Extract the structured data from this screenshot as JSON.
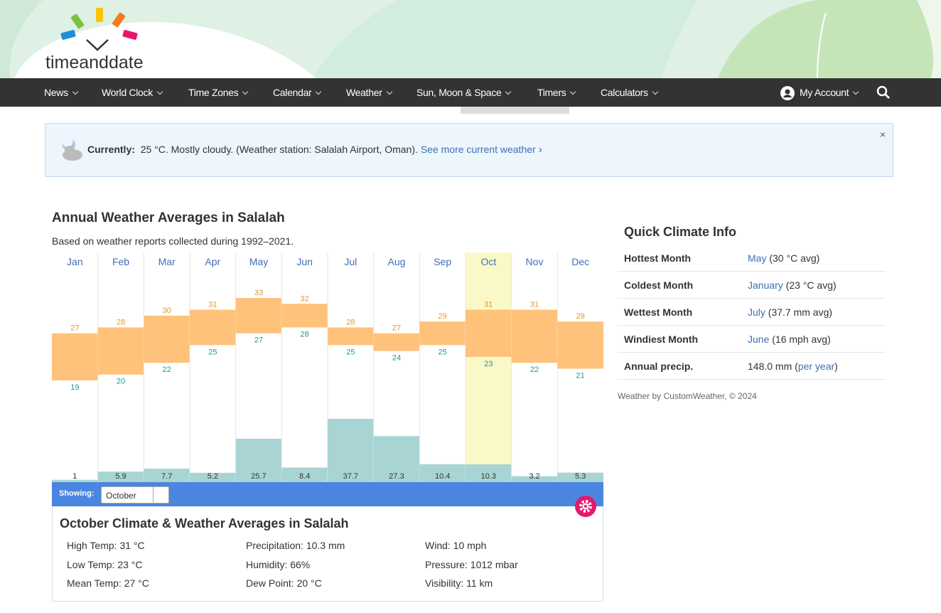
{
  "header": {
    "logo": "timeanddate"
  },
  "nav": {
    "items": [
      "News",
      "World Clock",
      "Time Zones",
      "Calendar",
      "Weather",
      "Sun, Moon & Space",
      "Timers",
      "Calculators"
    ],
    "account": "My Account"
  },
  "current": {
    "label": "Currently:",
    "text": "25 °C. Mostly cloudy. (Weather station: Salalah Airport, Oman).",
    "link": "See more current weather",
    "close": "×"
  },
  "chart_data": {
    "type": "bar",
    "title": "Annual Weather Averages in Salalah",
    "subtitle": "Based on weather reports collected during 1992–2021.",
    "categories": [
      "Jan",
      "Feb",
      "Mar",
      "Apr",
      "May",
      "Jun",
      "Jul",
      "Aug",
      "Sep",
      "Oct",
      "Nov",
      "Dec"
    ],
    "series": [
      {
        "color": "#e8961e",
        "values": [
          27,
          28,
          30,
          31,
          33,
          32,
          28,
          27,
          29,
          31,
          31,
          29
        ]
      },
      {
        "color": "#1a9a9a",
        "values": [
          19,
          20,
          22,
          25,
          27,
          28,
          25,
          24,
          25,
          23,
          22,
          21
        ]
      },
      {
        "color": "#a8d5d3",
        "values": [
          1,
          5.9,
          7.7,
          5.2,
          25.7,
          8.4,
          37.7,
          27.3,
          10.4,
          10.3,
          3.2,
          5.3
        ]
      }
    ],
    "band_color": "#ffc27a",
    "selected": 9
  },
  "showing": {
    "label": "Showing:",
    "selected": "October"
  },
  "details": {
    "title": "October Climate & Weather Averages in Salalah",
    "columns": [
      [
        "High Temp: 31 °C",
        "Low Temp: 23 °C",
        "Mean Temp: 27 °C"
      ],
      [
        "Precipitation: 10.3 mm",
        "Humidity: 66%",
        "Dew Point: 20 °C"
      ],
      [
        "Wind: 10 mph",
        "Pressure: 1012 mbar",
        "Visibility: 11 km"
      ]
    ]
  },
  "climate_info": {
    "title": "Quick Climate Info",
    "rows": [
      {
        "label": "Hottest Month",
        "parts": [
          {
            "text": "May",
            "link": true
          },
          {
            "text": " (30 °C avg)",
            "link": false
          }
        ]
      },
      {
        "label": "Coldest Month",
        "parts": [
          {
            "text": "January",
            "link": true
          },
          {
            "text": " (23 °C avg)",
            "link": false
          }
        ]
      },
      {
        "label": "Wettest Month",
        "parts": [
          {
            "text": "July",
            "link": true
          },
          {
            "text": " (37.7 mm avg)",
            "link": false
          }
        ]
      },
      {
        "label": "Windiest Month",
        "parts": [
          {
            "text": "June",
            "link": true
          },
          {
            "text": " (16 mph avg)",
            "link": false
          }
        ]
      },
      {
        "label": "Annual precip.",
        "parts": [
          {
            "text": "148.0 mm (",
            "link": false
          },
          {
            "text": "per year",
            "link": true
          },
          {
            "text": ")",
            "link": false
          }
        ]
      }
    ],
    "credit": "Weather by CustomWeather, © 2024"
  }
}
